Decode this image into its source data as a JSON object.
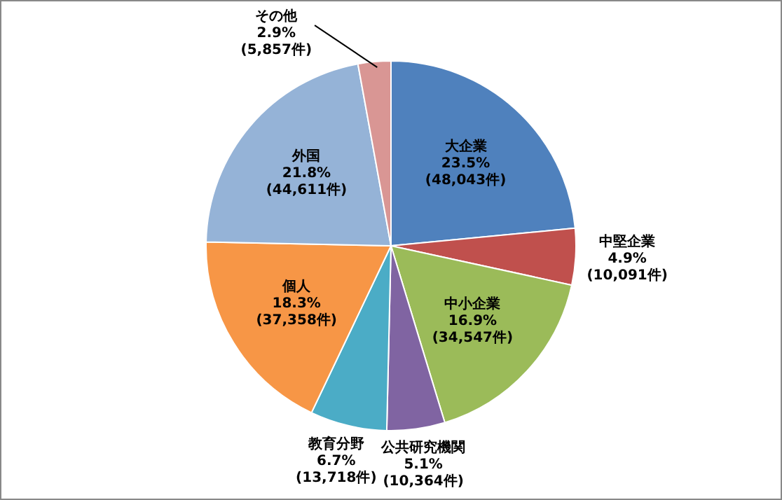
{
  "chart_data": {
    "type": "pie",
    "categories": [
      "大企業",
      "中堅企業",
      "中小企業",
      "公共研究機関",
      "教育分野",
      "個人",
      "外国",
      "その他"
    ],
    "values": [
      48043,
      10091,
      34547,
      10364,
      13718,
      37358,
      44611,
      5857
    ],
    "value_labels": [
      "23.5%\n(48,043件)",
      "4.9%\n(10,091件)",
      "16.9%\n(34,547件)",
      "5.1%\n(10,364件)",
      "6.7%\n(13,718件)",
      "18.3%\n(37,358件)",
      "21.8%\n(44,611件)",
      "2.9%\n(5,857件)"
    ],
    "colors": [
      "#4f81bd",
      "#c0504d",
      "#9bbb59",
      "#8064a2",
      "#4bacc6",
      "#f79646",
      "#95b3d7",
      "#d99694"
    ],
    "legend": false
  }
}
